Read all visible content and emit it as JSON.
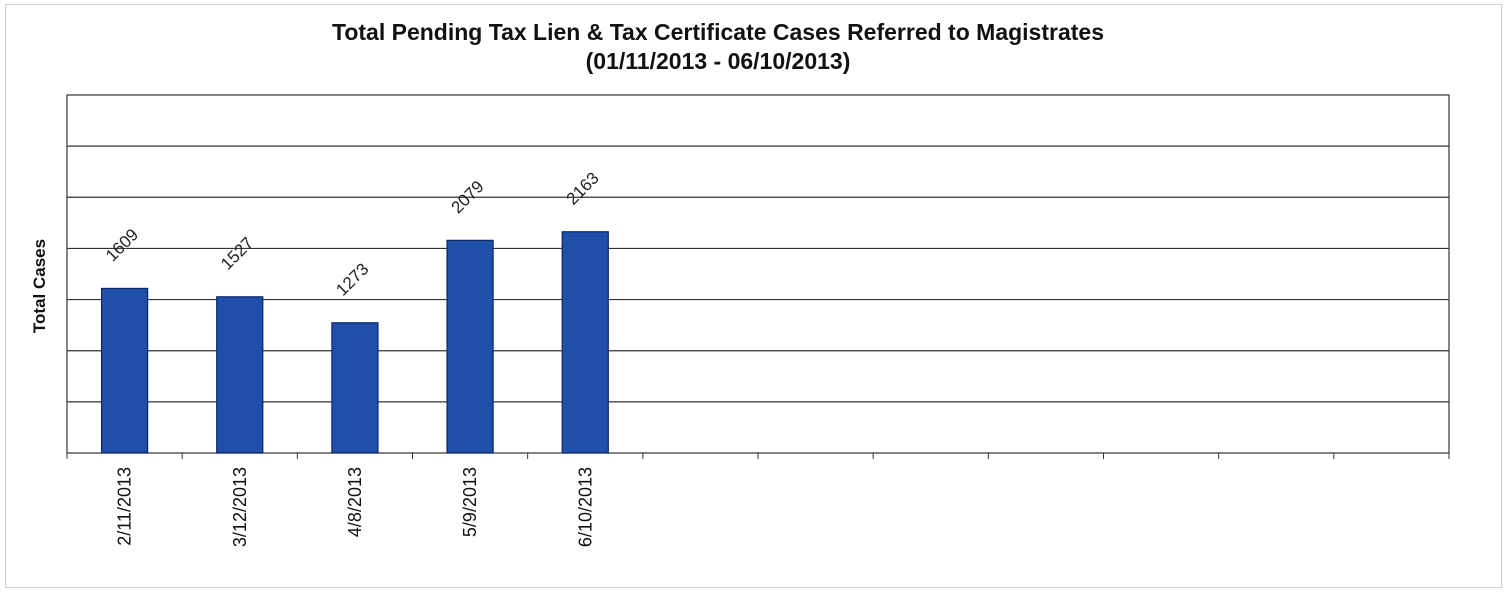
{
  "chart_data": {
    "type": "bar",
    "title": "Total Pending Tax Lien & Tax Certificate Cases Referred to Magistrates",
    "subtitle": "(01/11/2013 - 06/10/2013)",
    "ylabel": "Total Cases",
    "xlabel": "",
    "categories": [
      "2/11/2013",
      "3/12/2013",
      "4/8/2013",
      "5/9/2013",
      "6/10/2013"
    ],
    "values": [
      1609,
      1527,
      1273,
      2079,
      2163
    ],
    "ylim": [
      0,
      3500
    ],
    "y_gridline_step": 500,
    "x_slots": 12,
    "grid": true,
    "legend": "none",
    "colors": {
      "bar": "#1f4fa8",
      "bar_edge": "#0c2766",
      "grid": "#333333"
    }
  }
}
